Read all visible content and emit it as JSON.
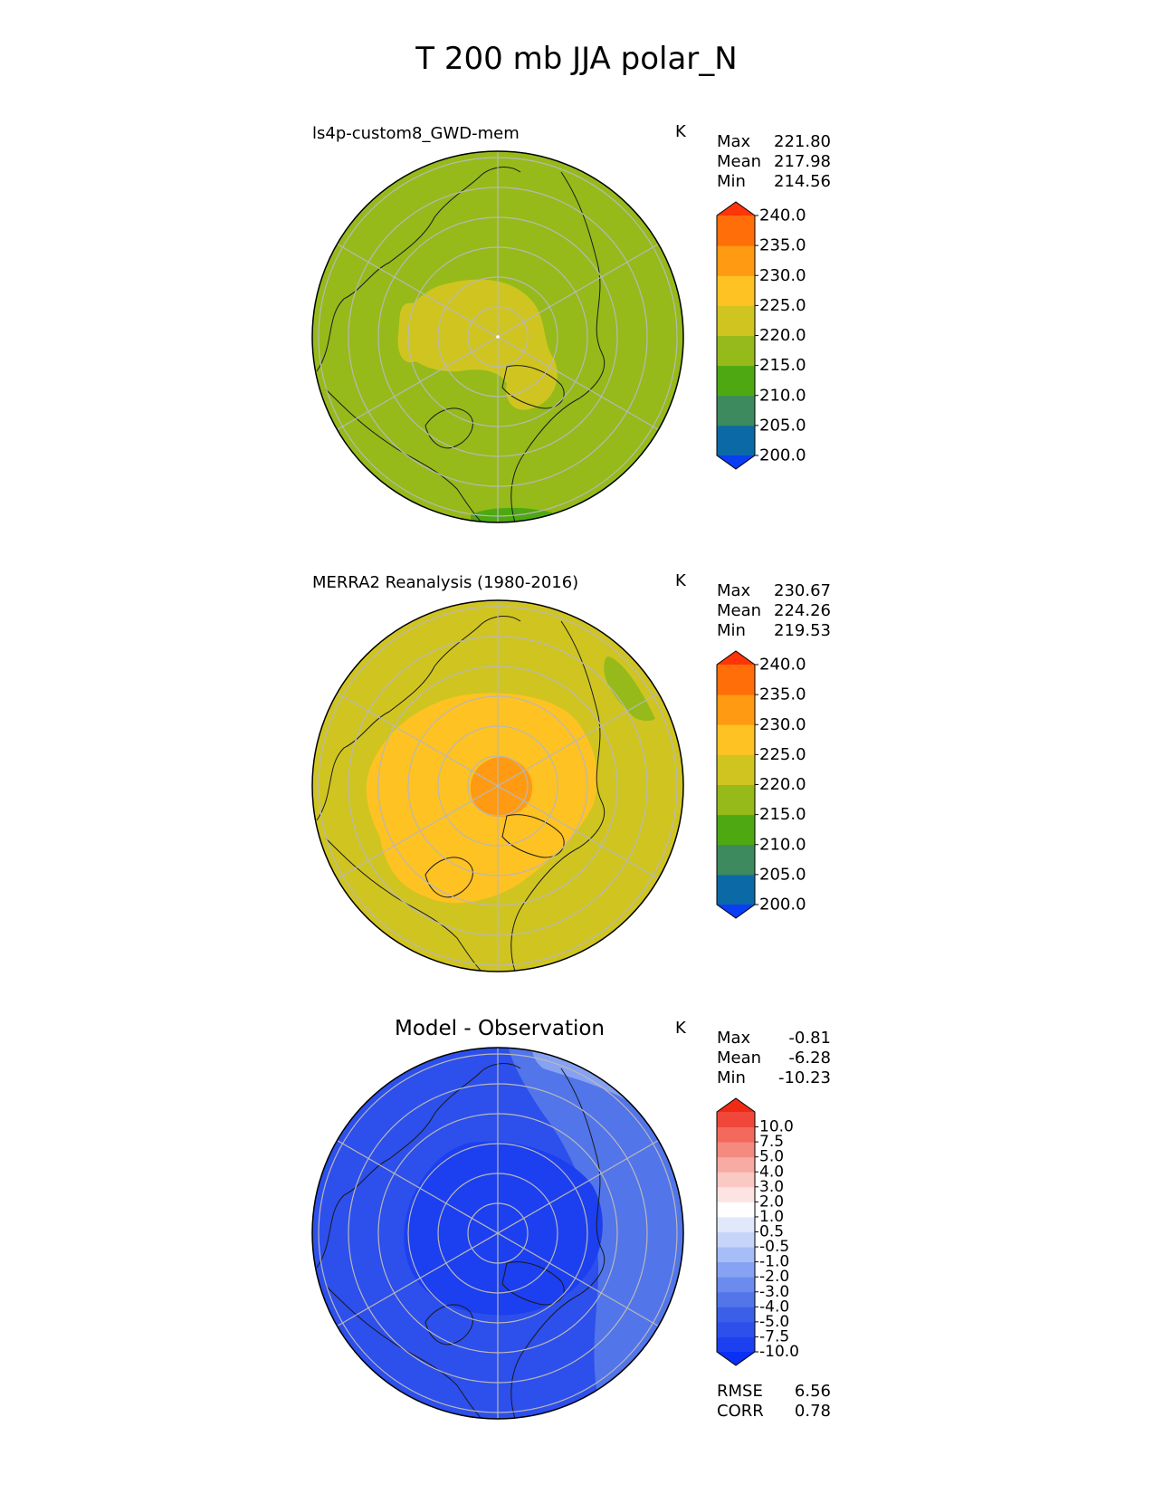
{
  "figure_title": "T 200 mb JJA polar_N",
  "chart_data": [
    {
      "type": "heatmap",
      "projection": "north-polar-stereographic",
      "title": "ls4p-custom8_GWD-mem",
      "units": "K",
      "stats": [
        {
          "label": "Max",
          "value": "221.80"
        },
        {
          "label": "Mean",
          "value": "217.98"
        },
        {
          "label": "Min",
          "value": "214.56"
        }
      ],
      "colorbar": {
        "levels": [
          195,
          200,
          205,
          210,
          215,
          220,
          225,
          230,
          235,
          240,
          245
        ],
        "tick_labels": [
          "240.0",
          "235.0",
          "230.0",
          "225.0",
          "220.0",
          "215.0",
          "210.0",
          "205.0",
          "200.0"
        ],
        "colors": [
          "#0a3ef5",
          "#0b6aa6",
          "#3c8a5d",
          "#4ea812",
          "#96ba1a",
          "#d0c520",
          "#fec223",
          "#ff9a12",
          "#ff6e08",
          "#ff3409"
        ],
        "extend": "both"
      },
      "field": {
        "base_value": 219,
        "regions": [
          {
            "name": "central-arctic-warm-core",
            "value": 222
          },
          {
            "name": "siberian-sector-warm-patch",
            "value": 222
          },
          {
            "name": "asian-margin-cool-patch",
            "value": 214
          }
        ]
      }
    },
    {
      "type": "heatmap",
      "projection": "north-polar-stereographic",
      "title": "MERRA2 Reanalysis (1980-2016)",
      "units": "K",
      "stats": [
        {
          "label": "Max",
          "value": "230.67"
        },
        {
          "label": "Mean",
          "value": "224.26"
        },
        {
          "label": "Min",
          "value": "219.53"
        }
      ],
      "colorbar": {
        "levels": [
          195,
          200,
          205,
          210,
          215,
          220,
          225,
          230,
          235,
          240,
          245
        ],
        "tick_labels": [
          "240.0",
          "235.0",
          "230.0",
          "225.0",
          "220.0",
          "215.0",
          "210.0",
          "205.0",
          "200.0"
        ],
        "colors": [
          "#0a3ef5",
          "#0b6aa6",
          "#3c8a5d",
          "#4ea812",
          "#96ba1a",
          "#d0c520",
          "#fec223",
          "#ff9a12",
          "#ff6e08",
          "#ff3409"
        ],
        "extend": "both"
      },
      "field": {
        "base_value": 223,
        "regions": [
          {
            "name": "arctic-warm-region",
            "value": 227
          },
          {
            "name": "north-pole-warmest-core",
            "value": 230.5
          },
          {
            "name": "north-pacific-cool-patch",
            "value": 219.5
          }
        ]
      }
    },
    {
      "type": "heatmap",
      "projection": "north-polar-stereographic",
      "title": "Model - Observation",
      "units": "K",
      "stats": [
        {
          "label": "Max",
          "value": "-0.81"
        },
        {
          "label": "Mean",
          "value": "-6.28"
        },
        {
          "label": "Min",
          "value": "-10.23"
        }
      ],
      "colorbar": {
        "levels": [
          -12.5,
          -10,
          -7.5,
          -5,
          -4,
          -3,
          -2,
          -1,
          -0.5,
          0.5,
          1,
          2,
          3,
          4,
          5,
          7.5,
          10,
          12.5
        ],
        "tick_labels": [
          "10.0",
          "7.5",
          "5.0",
          "4.0",
          "3.0",
          "2.0",
          "1.0",
          "0.5",
          "-0.5",
          "-1.0",
          "-2.0",
          "-3.0",
          "-4.0",
          "-5.0",
          "-7.5",
          "-10.0"
        ],
        "colors": [
          "#0a30f5",
          "#1c3ff0",
          "#2d4fec",
          "#3c5fe9",
          "#5275ea",
          "#6b8cee",
          "#87a2f3",
          "#a6bdf7",
          "#c7d4fa",
          "#e1e8fc",
          "#ffffff",
          "#fde3e1",
          "#fbc9c4",
          "#f8aba3",
          "#f58a80",
          "#f36a5c",
          "#f1473a",
          "#f02a14"
        ],
        "extend": "both"
      },
      "field": {
        "base_value": -6.5,
        "regions": [
          {
            "name": "arctic-strong-cold-bias",
            "value": -8.5
          },
          {
            "name": "north-pacific-weak-bias",
            "value": -3.5
          },
          {
            "name": "alaska-sector-weakest-bias",
            "value": -1.5
          },
          {
            "name": "east-siberia-moderate-bias",
            "value": -5.5
          }
        ]
      },
      "metrics": [
        {
          "label": "RMSE",
          "value": "6.56"
        },
        {
          "label": "CORR",
          "value": "0.78"
        }
      ]
    }
  ]
}
